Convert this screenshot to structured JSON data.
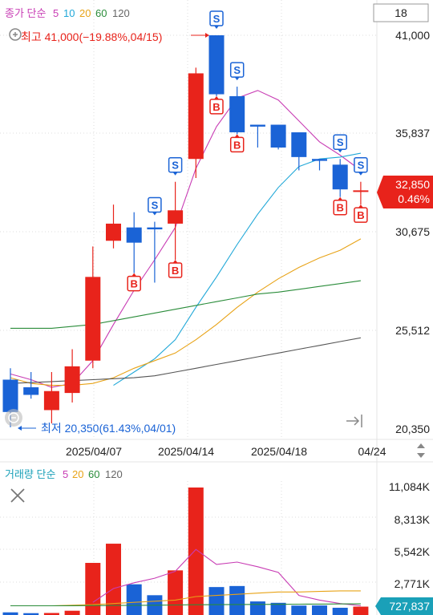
{
  "header": {
    "price_legend": {
      "label": "종가 단순",
      "ma": [
        "5",
        "10",
        "20",
        "60",
        "120"
      ]
    },
    "period_box": "18"
  },
  "colors": {
    "up": "#e8231b",
    "down": "#1a63d6",
    "ma5": "#c83cb4",
    "ma10": "#21a8d8",
    "ma20": "#e8a317",
    "ma60": "#2a8c3a",
    "ma120": "#555555",
    "price_tag": "#e8231b",
    "volume_tag": "#1aa0b8",
    "grid": "#dedede"
  },
  "price_axis": {
    "ticks": [
      "41,000",
      "35,837",
      "30,675",
      "25,512",
      "20,350"
    ]
  },
  "high_annotation": "최고 41,000(−19.88%,04/15)",
  "low_annotation": "최저 20,350(61.43%,04/01)",
  "current_price": {
    "value": "32,850",
    "change": "0.46%"
  },
  "date_axis": [
    "2025/04/07",
    "2025/04/14",
    "2025/04/18",
    "04/24"
  ],
  "volume_legend": {
    "label": "거래량 단순",
    "ma": [
      "5",
      "20",
      "60",
      "120"
    ]
  },
  "volume_axis": {
    "ticks": [
      "11,084K",
      "8,313K",
      "5,542K",
      "2,771K"
    ]
  },
  "current_volume": "727,837",
  "icons": [
    "zoom-in-icon",
    "zoom-out-icon",
    "expand-icon",
    "scroll-arrows-icon",
    "close-icon"
  ],
  "chart_data": {
    "type": "candlestick",
    "price_range": [
      20350,
      41000
    ],
    "volume_range": [
      0,
      11084
    ],
    "candles": [
      {
        "o": 22900,
        "h": 23500,
        "l": 20400,
        "c": 21200,
        "vol": 230
      },
      {
        "o": 22500,
        "h": 23300,
        "l": 21900,
        "c": 22100,
        "vol": 160
      },
      {
        "o": 21300,
        "h": 23300,
        "l": 20600,
        "c": 22300,
        "vol": 175
      },
      {
        "o": 22200,
        "h": 24500,
        "l": 21700,
        "c": 23600,
        "vol": 370
      },
      {
        "o": 23900,
        "h": 29900,
        "l": 23500,
        "c": 28300,
        "vol": 4530
      },
      {
        "o": 30200,
        "h": 32100,
        "l": 29800,
        "c": 31100,
        "vol": 6200
      },
      {
        "o": 30900,
        "h": 31700,
        "l": 28500,
        "c": 30100,
        "vol": 2670
      },
      {
        "o": 30900,
        "h": 31200,
        "l": 28000,
        "c": 30800,
        "vol": 1720
      },
      {
        "o": 31100,
        "h": 33300,
        "l": 29200,
        "c": 31800,
        "vol": 3880
      },
      {
        "o": 34500,
        "h": 39300,
        "l": 33500,
        "c": 39000,
        "vol": 11084
      },
      {
        "o": 41000,
        "h": 41000,
        "l": 37800,
        "c": 37900,
        "vol": 2430
      },
      {
        "o": 37800,
        "h": 38300,
        "l": 35800,
        "c": 35900,
        "vol": 2520
      },
      {
        "o": 36300,
        "h": 36300,
        "l": 35100,
        "c": 36200,
        "vol": 1180
      },
      {
        "o": 36300,
        "h": 36300,
        "l": 35000,
        "c": 35100,
        "vol": 1060
      },
      {
        "o": 35900,
        "h": 35900,
        "l": 33900,
        "c": 34600,
        "vol": 820
      },
      {
        "o": 34500,
        "h": 34500,
        "l": 33900,
        "c": 34400,
        "vol": 830
      },
      {
        "o": 34200,
        "h": 34500,
        "l": 32500,
        "c": 32900,
        "vol": 630
      },
      {
        "o": 32800,
        "h": 33300,
        "l": 32100,
        "c": 32850,
        "vol": 728
      }
    ],
    "signals": [
      {
        "i": 6,
        "type": "B"
      },
      {
        "i": 7,
        "type": "S"
      },
      {
        "i": 8,
        "type": "B"
      },
      {
        "i": 8,
        "type": "S"
      },
      {
        "i": 10,
        "type": "B"
      },
      {
        "i": 10,
        "type": "S"
      },
      {
        "i": 11,
        "type": "S"
      },
      {
        "i": 11,
        "type": "B"
      },
      {
        "i": 16,
        "type": "B"
      },
      {
        "i": 16,
        "type": "S"
      },
      {
        "i": 17,
        "type": "B"
      },
      {
        "i": 17,
        "type": "S"
      }
    ],
    "ma_lines": {
      "ma5": [
        23200,
        22900,
        22500,
        22700,
        23900,
        25800,
        27600,
        29200,
        30900,
        34000,
        36200,
        37700,
        38100,
        37600,
        36500,
        35400,
        34700,
        33900
      ],
      "ma10": [
        null,
        null,
        null,
        null,
        null,
        22600,
        23300,
        24000,
        25000,
        26700,
        28300,
        30000,
        31600,
        33000,
        34100,
        34500,
        34600,
        34800
      ],
      "ma20": [
        23000,
        22700,
        22600,
        22600,
        22700,
        23000,
        23500,
        23900,
        24300,
        25000,
        25800,
        26700,
        27500,
        28200,
        28800,
        29300,
        29700,
        30300
      ],
      "ma60": [
        25600,
        25600,
        25600,
        25700,
        25800,
        26000,
        26200,
        26400,
        26600,
        26800,
        27000,
        27200,
        27400,
        27500,
        27650,
        27800,
        27950,
        28100
      ],
      "ma120": [
        22700,
        22750,
        22800,
        22850,
        22900,
        22950,
        23000,
        23100,
        23300,
        23500,
        23700,
        23900,
        24100,
        24300,
        24500,
        24700,
        24900,
        25100
      ]
    },
    "volume_ma": {
      "ma5": [
        null,
        null,
        null,
        null,
        1100,
        2300,
        2800,
        3200,
        3800,
        5700,
        4400,
        4600,
        4200,
        3700,
        1700,
        1300,
        1000,
        800
      ],
      "ma20": [
        800,
        800,
        800,
        850,
        900,
        1000,
        1100,
        1200,
        1300,
        1600,
        1700,
        1800,
        1900,
        2000,
        2000,
        2050,
        2100,
        2100
      ],
      "ma60": [
        800,
        800,
        800,
        810,
        820,
        830,
        840,
        850,
        870,
        890,
        900,
        910,
        920,
        930,
        940,
        950,
        960,
        970
      ]
    }
  }
}
